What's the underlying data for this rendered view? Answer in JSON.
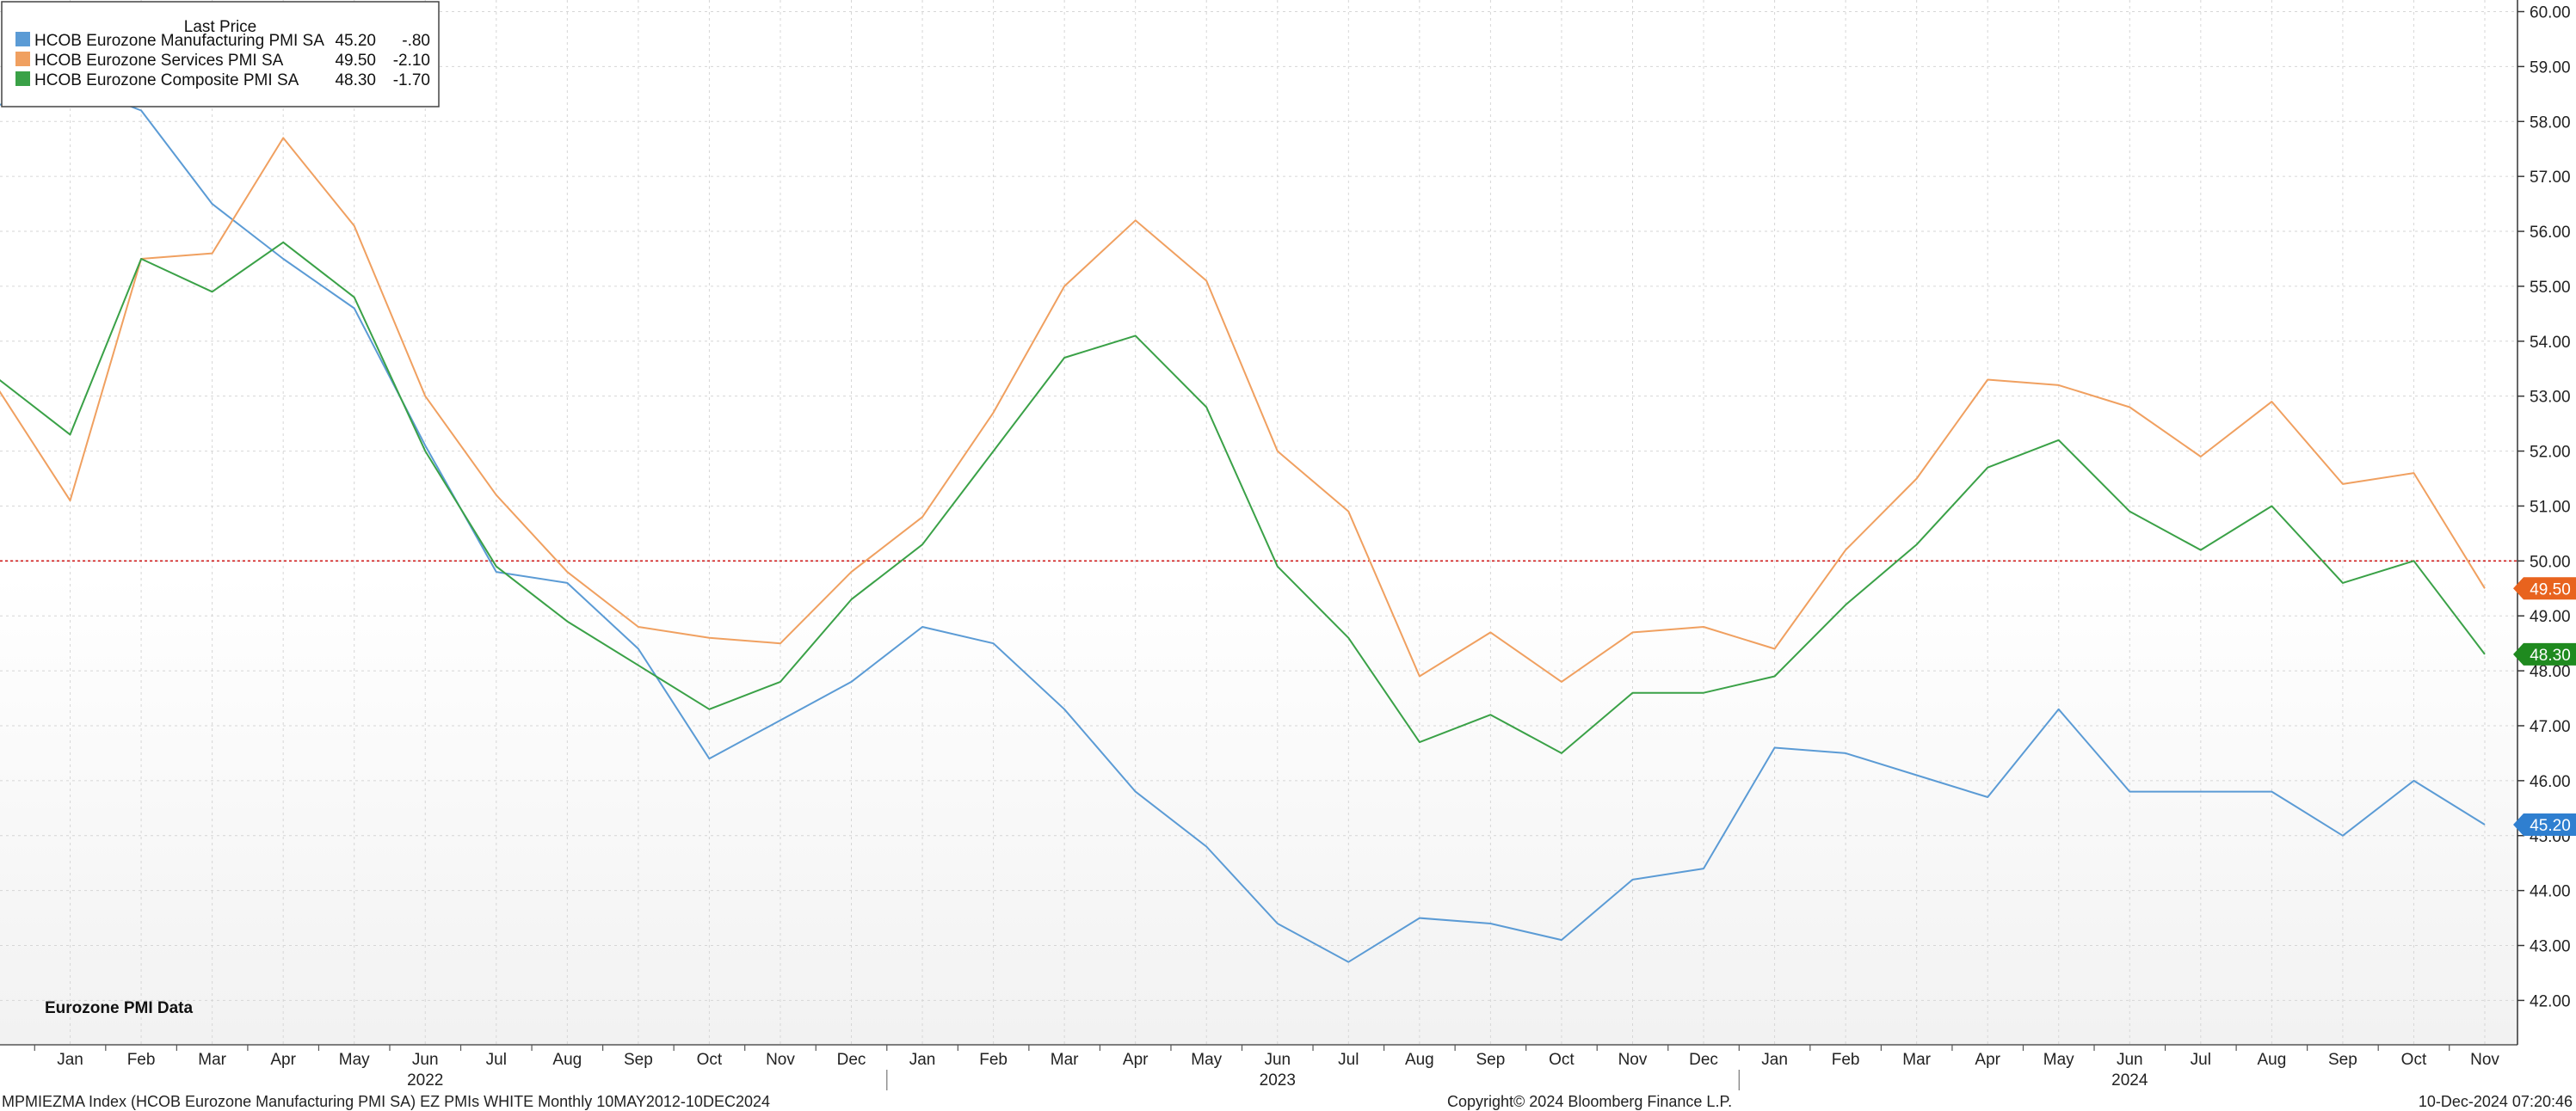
{
  "chart_data": {
    "type": "line",
    "title": "",
    "xlabel": "",
    "ylabel": "",
    "ylim": [
      41.0,
      60.0
    ],
    "y_ticks": [
      "42.00",
      "43.00",
      "44.00",
      "45.00",
      "46.00",
      "47.00",
      "48.00",
      "49.00",
      "50.00",
      "51.00",
      "52.00",
      "53.00",
      "54.00",
      "55.00",
      "56.00",
      "57.00",
      "58.00",
      "59.00",
      "60.00"
    ],
    "grid": true,
    "legend_placement": "top-left",
    "legend_header": "Last Price",
    "reference_line": {
      "y": 50.0,
      "color": "#d01c1c",
      "style": "dotted"
    },
    "x_month_labels": [
      "Jan",
      "Feb",
      "Mar",
      "Apr",
      "May",
      "Jun",
      "Jul",
      "Aug",
      "Sep",
      "Oct",
      "Nov",
      "Dec",
      "Jan",
      "Feb",
      "Mar",
      "Apr",
      "May",
      "Jun",
      "Jul",
      "Aug",
      "Sep",
      "Oct",
      "Nov",
      "Dec",
      "Jan",
      "Feb",
      "Mar",
      "Apr",
      "May",
      "Jun",
      "Jul",
      "Aug",
      "Sep",
      "Oct",
      "Nov"
    ],
    "x_year_labels": [
      {
        "label": "2022",
        "month_index": 5
      },
      {
        "label": "2023",
        "month_index": 17
      },
      {
        "label": "2024",
        "month_index": 29
      }
    ],
    "year_separators": [
      11.5,
      23.5
    ],
    "series": [
      {
        "name": "HCOB Eurozone Manufacturing PMI SA",
        "last": "45.20",
        "change": "-.80",
        "color": "#5b9bd5",
        "values": [
          58.3,
          58.7,
          58.2,
          56.5,
          55.5,
          54.6,
          52.1,
          49.8,
          49.6,
          48.4,
          46.4,
          47.1,
          47.8,
          48.8,
          48.5,
          47.3,
          45.8,
          44.8,
          43.4,
          42.7,
          43.5,
          43.4,
          43.1,
          44.2,
          44.4,
          46.6,
          46.5,
          46.1,
          45.7,
          47.3,
          45.8,
          45.8,
          45.8,
          45.0,
          46.0,
          45.2
        ]
      },
      {
        "name": "HCOB Eurozone Services PMI SA",
        "last": "49.50",
        "change": "-2.10",
        "color": "#f0a060",
        "values": [
          53.1,
          51.1,
          55.5,
          55.6,
          57.7,
          56.1,
          53.0,
          51.2,
          49.8,
          48.8,
          48.6,
          48.5,
          49.8,
          50.8,
          52.7,
          55.0,
          56.2,
          55.1,
          52.0,
          50.9,
          47.9,
          48.7,
          47.8,
          48.7,
          48.8,
          48.4,
          50.2,
          51.5,
          53.3,
          53.2,
          52.8,
          51.9,
          52.9,
          51.4,
          51.6,
          49.5
        ]
      },
      {
        "name": "HCOB Eurozone Composite PMI SA",
        "last": "48.30",
        "change": "-1.70",
        "color": "#3aa147",
        "values": [
          53.3,
          52.3,
          55.5,
          54.9,
          55.8,
          54.8,
          52.0,
          49.9,
          48.9,
          48.1,
          47.3,
          47.8,
          49.3,
          50.3,
          52.0,
          53.7,
          54.1,
          52.8,
          49.9,
          48.6,
          46.7,
          47.2,
          46.5,
          47.6,
          47.6,
          47.9,
          49.2,
          50.3,
          51.7,
          52.2,
          50.9,
          50.2,
          51.0,
          49.6,
          50.0,
          48.3
        ]
      }
    ],
    "last_value_tags": [
      {
        "label": "49.50",
        "value": 49.5,
        "color": "#e8631e"
      },
      {
        "label": "48.30",
        "value": 48.3,
        "color": "#1f8a1f"
      },
      {
        "label": "45.20",
        "value": 45.2,
        "color": "#2f7fd0"
      }
    ]
  },
  "annotation": "Eurozone PMI Data",
  "footer": {
    "left": "MPMIEZMA Index (HCOB Eurozone Manufacturing PMI SA) EZ PMIs WHITE  Monthly 10MAY2012-10DEC2024",
    "center": "Copyright© 2024 Bloomberg Finance L.P.",
    "right": "10-Dec-2024 07:20:46"
  }
}
